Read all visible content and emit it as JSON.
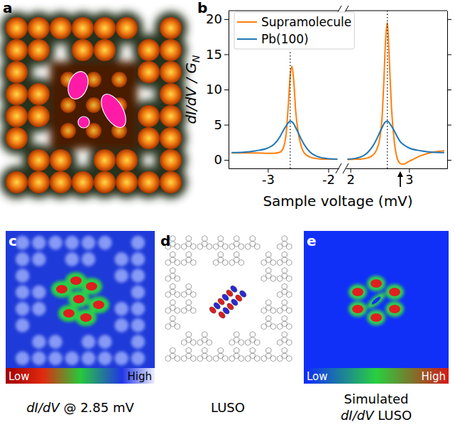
{
  "chart_data": {
    "type": "line",
    "letter": "b",
    "xlabel": "Sample voltage (mV)",
    "ylabel": "dI/dV / G",
    "ylabel_subscript": "N",
    "x": [
      -3.6,
      -3.4,
      -3.2,
      -3.0,
      -2.9,
      -2.8,
      -2.75,
      -2.7,
      -2.66,
      -2.63,
      -2.6,
      -2.57,
      -2.54,
      -2.5,
      -2.45,
      -2.4,
      -2.3,
      -2.2,
      -2.1,
      -1.85,
      1.95,
      2.1,
      2.2,
      2.3,
      2.4,
      2.45,
      2.5,
      2.54,
      2.57,
      2.6,
      2.63,
      2.66,
      2.7,
      2.75,
      2.8,
      2.85,
      2.9,
      3.0,
      3.2,
      3.4,
      3.6
    ],
    "series": [
      {
        "name": "Supramolecule",
        "color": "#ff7f0e",
        "values": [
          1.0,
          1.0,
          1.0,
          0.95,
          0.95,
          1.1,
          1.6,
          3.5,
          8.0,
          12.0,
          13.3,
          11.0,
          7.0,
          4.0,
          2.0,
          1.0,
          0.4,
          0.2,
          0.1,
          0.1,
          0.05,
          0.1,
          0.15,
          0.3,
          0.8,
          1.5,
          3.0,
          6.0,
          11.0,
          17.0,
          19.5,
          15.0,
          7.5,
          2.5,
          0.2,
          -0.5,
          -0.6,
          -0.2,
          0.6,
          1.1,
          1.3
        ]
      },
      {
        "name": "Pb(100)",
        "color": "#1f77b4",
        "values": [
          1.05,
          1.1,
          1.3,
          1.7,
          2.2,
          3.3,
          4.1,
          4.8,
          5.3,
          5.5,
          5.4,
          5.1,
          4.6,
          3.9,
          3.0,
          2.2,
          1.1,
          0.55,
          0.3,
          0.1,
          0.1,
          0.25,
          0.5,
          1.1,
          2.2,
          3.0,
          3.9,
          4.6,
          5.1,
          5.4,
          5.5,
          5.3,
          4.8,
          4.1,
          3.3,
          2.6,
          2.2,
          1.7,
          1.3,
          1.1,
          1.05
        ]
      }
    ],
    "xlim": [
      [
        -3.65,
        -1.83
      ],
      [
        1.92,
        3.65
      ]
    ],
    "xticks": [
      [
        -3,
        -2
      ],
      [
        2,
        3
      ]
    ],
    "ylim": [
      -1.2,
      21.2
    ],
    "yticks": [
      0,
      5,
      10,
      15,
      20
    ],
    "legend": "upper left",
    "vlines": [
      -2.63,
      2.63
    ],
    "arrow_x": 2.85
  },
  "panels": {
    "a": {
      "letter": "a"
    },
    "c": {
      "letter": "c",
      "colorbar": {
        "low": "Low",
        "high": "High"
      },
      "caption": "dI/dV @ 2.85 mV"
    },
    "d": {
      "letter": "d",
      "caption": "LUSO"
    },
    "e": {
      "letter": "e",
      "colorbar": {
        "low": "Low",
        "high": "High"
      },
      "caption": [
        "Simulated",
        "dI/dV LUSO"
      ]
    }
  }
}
